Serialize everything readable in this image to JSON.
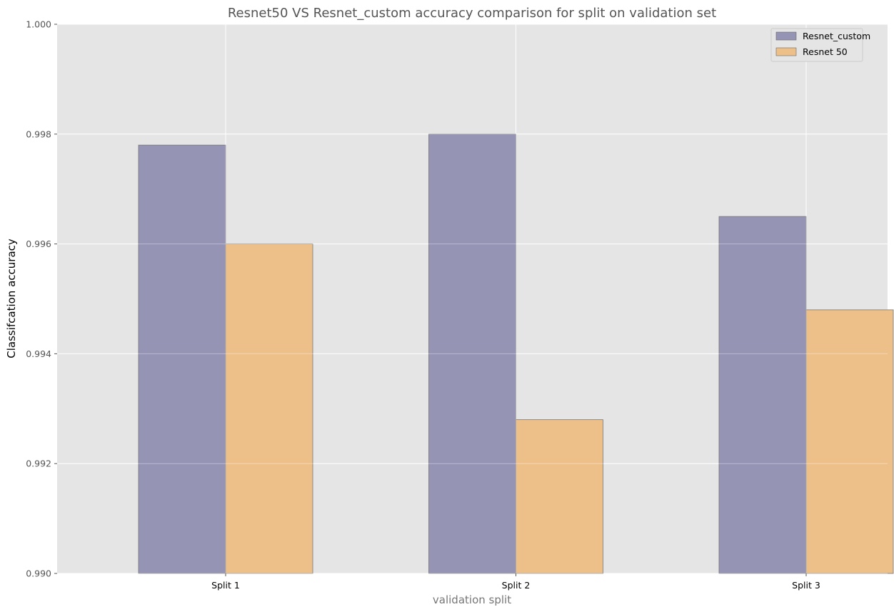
{
  "chart_data": {
    "type": "bar",
    "title": "Resnet50 VS Resnet_custom accuracy comparison for split on validation set",
    "xlabel": "validation split",
    "ylabel": "Classifcation accuracy",
    "categories": [
      "Split 1",
      "Split 2",
      "Split 3"
    ],
    "series": [
      {
        "name": "Resnet_custom",
        "values": [
          0.9978,
          0.998,
          0.9965
        ],
        "color": "#9594b5"
      },
      {
        "name": "Resnet 50",
        "values": [
          0.996,
          0.9928,
          0.9948
        ],
        "color": "#eec089"
      }
    ],
    "ylim": [
      0.99,
      1.0
    ],
    "yticks": [
      0.99,
      0.992,
      0.994,
      0.996,
      0.998,
      1.0
    ],
    "ytick_labels": [
      "0.990",
      "0.992",
      "0.994",
      "0.996",
      "0.998",
      "1.000"
    ],
    "grid": true,
    "legend_position": "top-right",
    "background_color": "#e5e5e5"
  }
}
